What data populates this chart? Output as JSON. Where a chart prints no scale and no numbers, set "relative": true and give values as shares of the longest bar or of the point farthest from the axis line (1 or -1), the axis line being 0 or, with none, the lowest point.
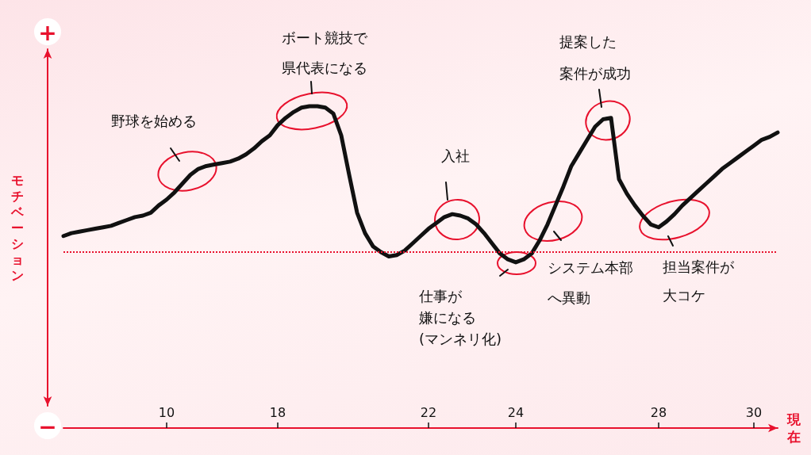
{
  "chart_data": {
    "type": "line",
    "relative": true,
    "xlabel": "現在",
    "ylabel": "モチベーション",
    "categories": [
      null,
      null,
      null,
      null,
      null,
      null,
      null,
      null,
      null,
      null,
      null,
      null,
      null,
      "10",
      null,
      null,
      null,
      null,
      null,
      null,
      null,
      null,
      null,
      null,
      null,
      null,
      null,
      "18",
      null,
      null,
      null,
      null,
      null,
      null,
      null,
      null,
      null,
      null,
      null,
      null,
      null,
      null,
      null,
      null,
      null,
      null,
      "22",
      null,
      null,
      null,
      null,
      null,
      null,
      null,
      null,
      null,
      null,
      "24",
      null,
      null,
      null,
      null,
      null,
      null,
      null,
      null,
      null,
      null,
      null,
      null,
      null,
      null,
      null,
      null,
      null,
      "28",
      null,
      null,
      null,
      null,
      null,
      null,
      null,
      null,
      null,
      null,
      null,
      "30",
      null,
      null,
      null
    ],
    "series": [
      {
        "color": "#111111",
        "values": [
          0.11,
          0.13,
          0.14,
          0.15,
          0.16,
          0.17,
          0.18,
          0.2,
          0.22,
          0.24,
          0.25,
          0.27,
          0.32,
          0.36,
          0.41,
          0.47,
          0.53,
          0.57,
          0.59,
          0.6,
          0.61,
          0.62,
          0.64,
          0.67,
          0.71,
          0.76,
          0.8,
          0.87,
          0.92,
          0.96,
          0.99,
          1,
          1,
          0.99,
          0.95,
          0.8,
          0.53,
          0.27,
          0.13,
          0.04,
          0,
          -0.03,
          -0.02,
          0.01,
          0.06,
          0.11,
          0.16,
          0.2,
          0.24,
          0.26,
          0.25,
          0.23,
          0.19,
          0.13,
          0.06,
          -0.01,
          -0.05,
          -0.07,
          -0.05,
          -0.01,
          0.08,
          0.19,
          0.32,
          0.45,
          0.59,
          0.68,
          0.77,
          0.86,
          0.91,
          0.92,
          0.5,
          0.4,
          0.32,
          0.25,
          0.19,
          0.17,
          0.21,
          0.26,
          0.32,
          0.37,
          0.42,
          0.47,
          0.52,
          0.57,
          0.61,
          0.65,
          0.69,
          0.73,
          0.77,
          0.79,
          0.82
        ]
      }
    ],
    "ref_lines": [
      {
        "axis": "y",
        "value": 0,
        "color": "#e8112d",
        "line_style": "dotted"
      }
    ],
    "annotations": [
      "+",
      "野球を始める",
      "ボート競技で県代表になる",
      "入社",
      "仕事が嫌になる(マンネリ化)",
      "システム本部へ異動",
      "提案した案件が成功",
      "担当案件が大コケ",
      "−"
    ],
    "marker": "none",
    "line_style": "solid"
  }
}
